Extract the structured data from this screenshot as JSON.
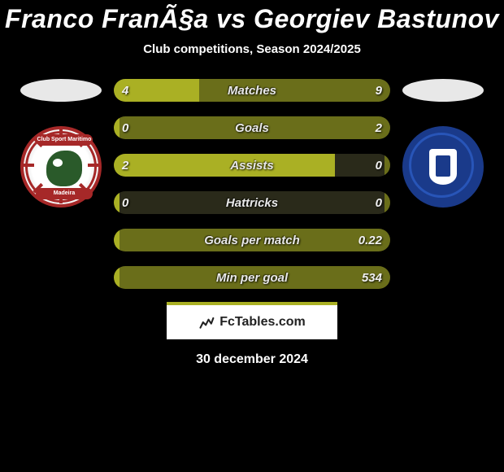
{
  "title": "Franco FranÃ§a vs Georgiev Bastunov",
  "subtitle": "Club competitions, Season 2024/2025",
  "date": "30 december 2024",
  "footer_brand": "FcTables.com",
  "colors": {
    "olive_dark": "#6a6e1a",
    "olive_light": "#aab024",
    "dark": "#2a2a1a",
    "oval": "#e8e8e8",
    "badge_left_ring": "#a62828",
    "badge_left_green": "#2a5a2a",
    "badge_right_bg": "#1a3a8a"
  },
  "badge_left": {
    "banner_top": "Club Sport Maritimo",
    "banner_bot": "Madeira"
  },
  "stats": [
    {
      "label": "Matches",
      "left_val": "4",
      "right_val": "9",
      "left_pct": 31,
      "right_pct": 69
    },
    {
      "label": "Goals",
      "left_val": "0",
      "right_val": "2",
      "left_pct": 2,
      "right_pct": 98
    },
    {
      "label": "Assists",
      "left_val": "2",
      "right_val": "0",
      "left_pct": 80,
      "right_pct": 2
    },
    {
      "label": "Hattricks",
      "left_val": "0",
      "right_val": "0",
      "left_pct": 2,
      "right_pct": 2
    },
    {
      "label": "Goals per match",
      "left_val": "",
      "right_val": "0.22",
      "left_pct": 2,
      "right_pct": 98
    },
    {
      "label": "Min per goal",
      "left_val": "",
      "right_val": "534",
      "left_pct": 2,
      "right_pct": 98
    }
  ]
}
